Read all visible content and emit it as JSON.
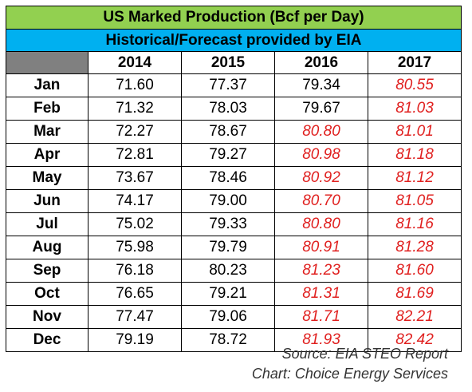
{
  "chart_data": {
    "type": "table",
    "title": "US Marked Production (Bcf per Day)",
    "subtitle": "Historical/Forecast provided by EIA",
    "columns": [
      "2014",
      "2015",
      "2016",
      "2017"
    ],
    "rows": [
      {
        "month": "Jan",
        "values": [
          "71.60",
          "77.37",
          "79.34",
          "80.55"
        ],
        "forecast": [
          false,
          false,
          false,
          true
        ]
      },
      {
        "month": "Feb",
        "values": [
          "71.32",
          "78.03",
          "79.67",
          "81.03"
        ],
        "forecast": [
          false,
          false,
          false,
          true
        ]
      },
      {
        "month": "Mar",
        "values": [
          "72.27",
          "78.67",
          "80.80",
          "81.01"
        ],
        "forecast": [
          false,
          false,
          true,
          true
        ]
      },
      {
        "month": "Apr",
        "values": [
          "72.81",
          "79.27",
          "80.98",
          "81.18"
        ],
        "forecast": [
          false,
          false,
          true,
          true
        ]
      },
      {
        "month": "May",
        "values": [
          "73.67",
          "78.46",
          "80.92",
          "81.12"
        ],
        "forecast": [
          false,
          false,
          true,
          true
        ]
      },
      {
        "month": "Jun",
        "values": [
          "74.17",
          "79.00",
          "80.70",
          "81.05"
        ],
        "forecast": [
          false,
          false,
          true,
          true
        ]
      },
      {
        "month": "Jul",
        "values": [
          "75.02",
          "79.33",
          "80.80",
          "81.16"
        ],
        "forecast": [
          false,
          false,
          true,
          true
        ]
      },
      {
        "month": "Aug",
        "values": [
          "75.98",
          "79.79",
          "80.91",
          "81.28"
        ],
        "forecast": [
          false,
          false,
          true,
          true
        ]
      },
      {
        "month": "Sep",
        "values": [
          "76.18",
          "80.23",
          "81.23",
          "81.60"
        ],
        "forecast": [
          false,
          false,
          true,
          true
        ]
      },
      {
        "month": "Oct",
        "values": [
          "76.65",
          "79.21",
          "81.31",
          "81.69"
        ],
        "forecast": [
          false,
          false,
          true,
          true
        ]
      },
      {
        "month": "Nov",
        "values": [
          "77.47",
          "79.06",
          "81.71",
          "82.21"
        ],
        "forecast": [
          false,
          false,
          true,
          true
        ]
      },
      {
        "month": "Dec",
        "values": [
          "79.19",
          "78.72",
          "81.93",
          "82.42"
        ],
        "forecast": [
          false,
          false,
          true,
          true
        ]
      }
    ],
    "colors": {
      "title_bg": "#92d050",
      "subtitle_bg": "#00b0f0",
      "corner_bg": "#808080",
      "forecast_text": "#e0201f"
    }
  },
  "captions": {
    "source": "Source: EIA STEO Report",
    "chart": "Chart: Choice Energy Services"
  }
}
